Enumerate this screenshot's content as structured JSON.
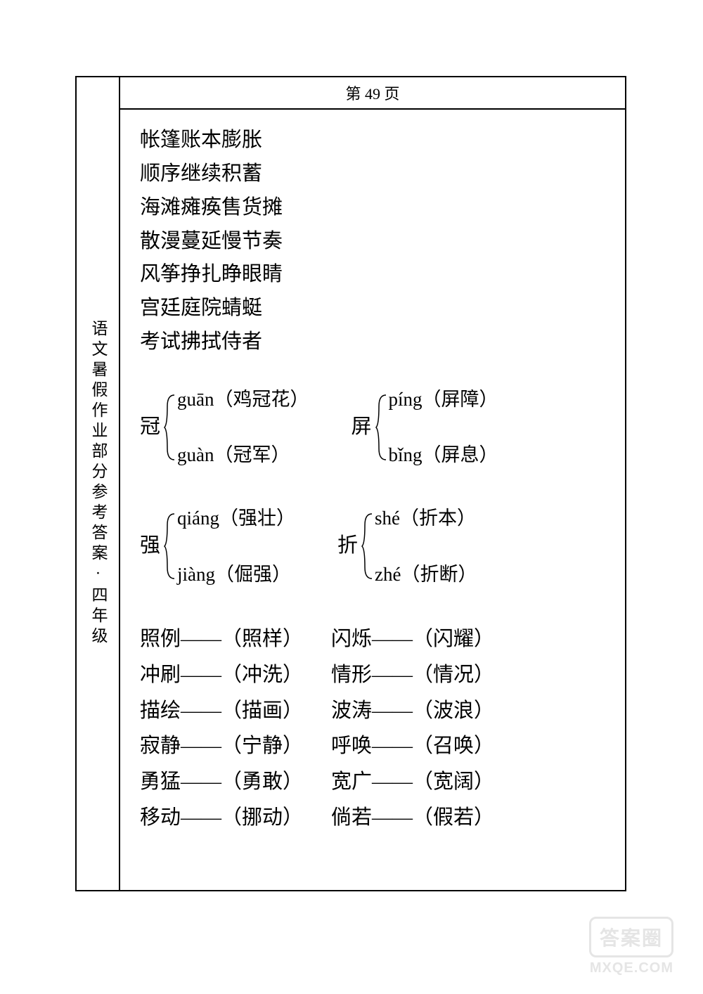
{
  "page": {
    "header": "第 49 页",
    "sidebar_text": "语文暑假作业部分参考答案·四年级"
  },
  "word_rows": [
    [
      "帐篷",
      "账本",
      "膨胀"
    ],
    [
      "顺序",
      "继续",
      "积蓄"
    ],
    [
      "海滩",
      "瘫痪",
      "售货摊"
    ],
    [
      "散漫",
      "蔓延",
      "慢节奏"
    ],
    [
      "风筝",
      "挣扎",
      "睁眼睛"
    ],
    [
      "宫廷",
      "庭院",
      "蜻蜓"
    ],
    [
      "考试",
      "拂拭",
      "侍者"
    ]
  ],
  "pinyin_groups": [
    [
      {
        "hanzi": "冠",
        "readings": [
          "guān（鸡冠花）",
          "guàn（冠军）"
        ]
      },
      {
        "hanzi": "屏",
        "readings": [
          "píng（屏障）",
          "bǐng（屏息）"
        ]
      }
    ],
    [
      {
        "hanzi": "强",
        "readings": [
          "qiáng（强壮）",
          "jiàng（倔强）"
        ]
      },
      {
        "hanzi": "折",
        "readings": [
          "shé（折本）",
          "zhé（折断）"
        ]
      }
    ]
  ],
  "synonyms": [
    [
      {
        "word": "照例",
        "syn": "照样"
      },
      {
        "word": "闪烁",
        "syn": "闪耀"
      }
    ],
    [
      {
        "word": "冲刷",
        "syn": "冲洗"
      },
      {
        "word": "情形",
        "syn": "情况"
      }
    ],
    [
      {
        "word": "描绘",
        "syn": "描画"
      },
      {
        "word": "波涛",
        "syn": "波浪"
      }
    ],
    [
      {
        "word": "寂静",
        "syn": "宁静"
      },
      {
        "word": "呼唤",
        "syn": "召唤"
      }
    ],
    [
      {
        "word": "勇猛",
        "syn": "勇敢"
      },
      {
        "word": "宽广",
        "syn": "宽阔"
      }
    ],
    [
      {
        "word": "移动",
        "syn": "挪动"
      },
      {
        "word": "倘若",
        "syn": "假若"
      }
    ]
  ],
  "watermark": {
    "label": "答案圈",
    "url": "MXQE.COM"
  },
  "colors": {
    "text": "#000000",
    "background": "#ffffff",
    "watermark": "#e5e5e5",
    "border": "#000000"
  },
  "fonts": {
    "body_size": 29,
    "header_size": 22,
    "sidebar_size": 23,
    "pinyin_size": 27
  },
  "bracket": {
    "height": 100,
    "width": 18,
    "stroke": "#000000",
    "stroke_width": 1.5
  }
}
